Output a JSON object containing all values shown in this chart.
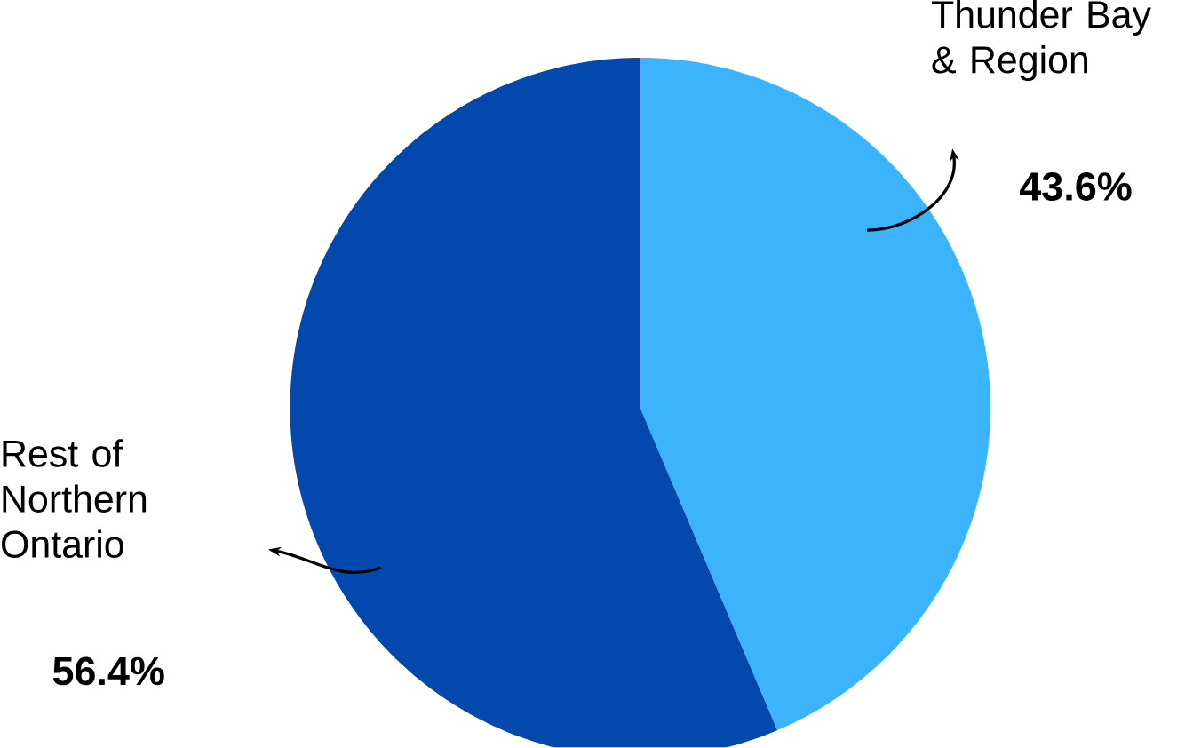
{
  "chart_data": {
    "type": "pie",
    "categories": [
      "Thunder Bay & Region",
      "Rest of Northern Ontario"
    ],
    "values": [
      43.6,
      56.4
    ],
    "colors": [
      "#3bb4fd",
      "#0349ad"
    ],
    "value_labels": [
      "43.6%",
      "56.4%"
    ]
  }
}
